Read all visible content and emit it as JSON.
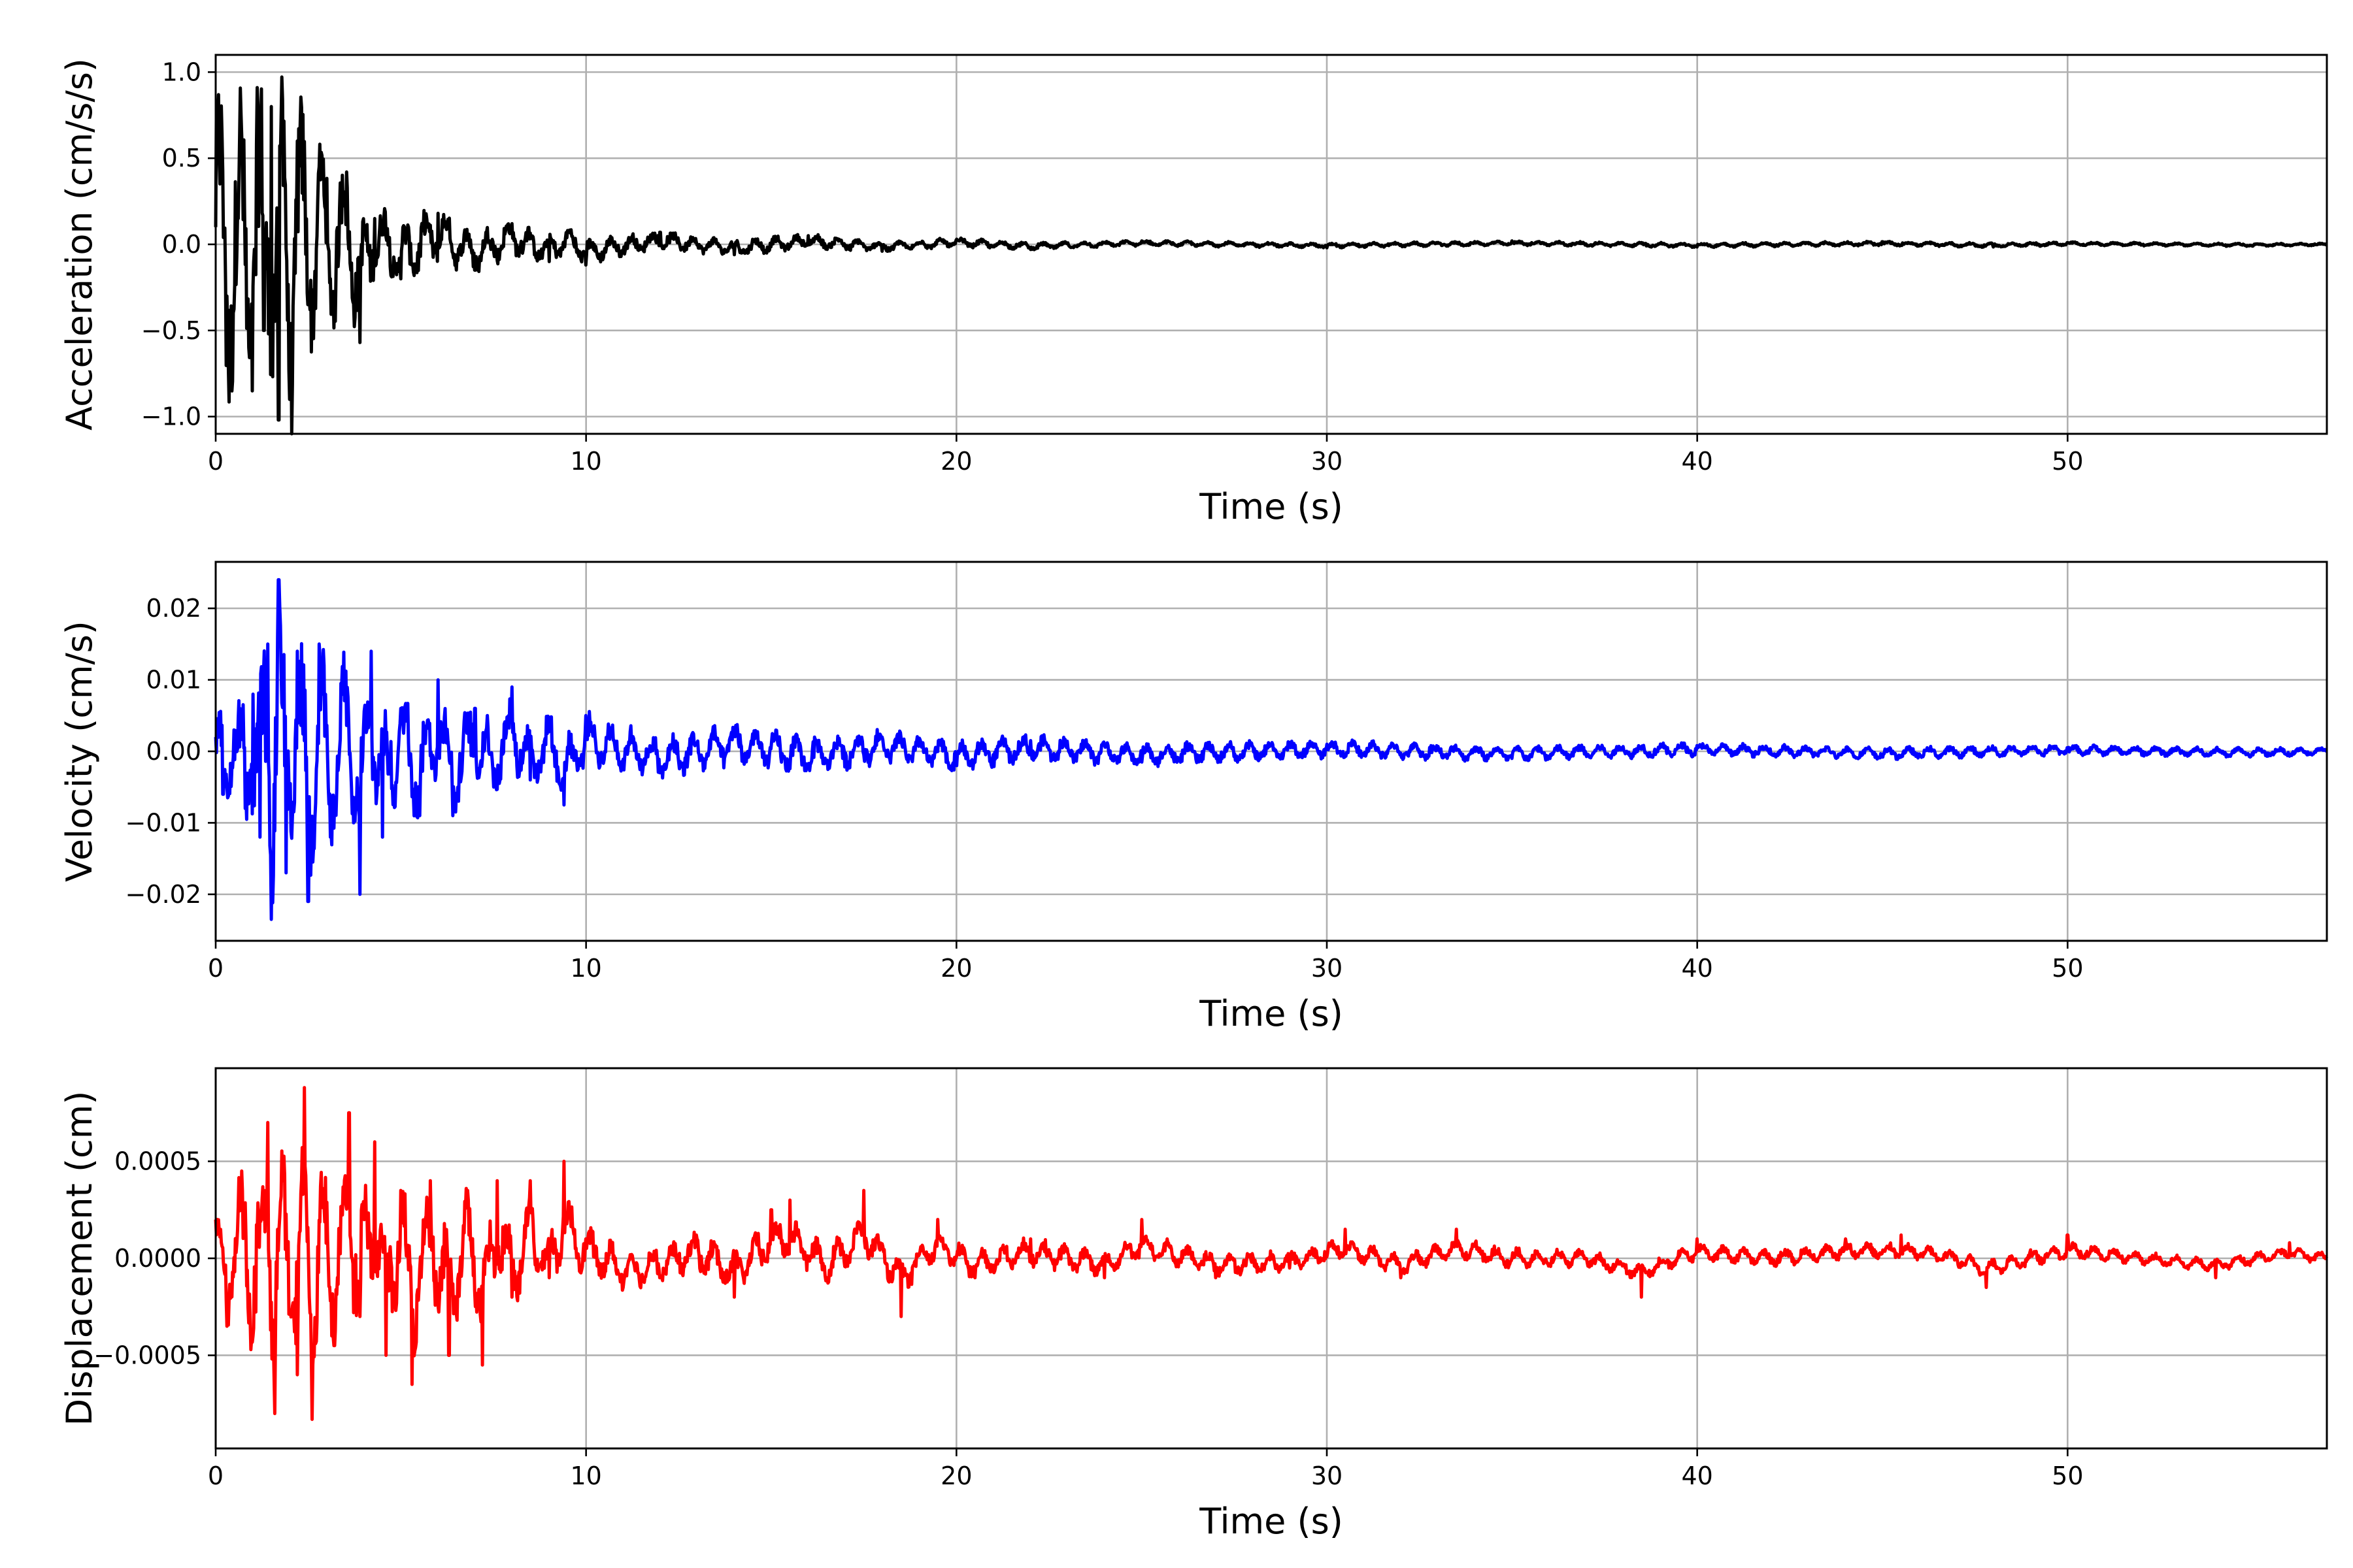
{
  "chart_data": [
    {
      "type": "line",
      "xlabel": "Time (s)",
      "ylabel": "Acceleration (cm/s/s)",
      "xlim": [
        0,
        57
      ],
      "ylim": [
        -1.1,
        1.1
      ],
      "xticks": [
        0,
        10,
        20,
        30,
        40,
        50
      ],
      "xtick_labels": [
        "0",
        "10",
        "20",
        "30",
        "40",
        "50"
      ],
      "yticks": [
        -1.0,
        -0.5,
        0.0,
        0.5,
        1.0
      ],
      "ytick_labels": [
        "−1.0",
        "−0.5",
        "0.0",
        "0.5",
        "1.0"
      ],
      "grid": true,
      "color": "#000000",
      "series": [
        {
          "x": [
            0,
            0.3,
            0.6,
            0.9,
            1.1,
            1.3,
            1.5,
            1.7,
            1.8,
            2.0,
            2.2,
            2.5,
            2.8,
            3.1,
            3.5,
            3.9,
            4.3,
            5.0,
            6.0,
            7.0,
            8.0,
            9.0,
            9.5,
            10,
            12,
            14,
            16,
            18,
            20,
            22,
            25,
            30,
            35,
            40,
            45,
            48,
            50,
            55,
            57
          ],
          "y": [
            0.1,
            -0.3,
            0.15,
            -0.6,
            0.58,
            -0.5,
            0.8,
            -1.02,
            0.84,
            -0.9,
            0.6,
            -0.35,
            0.45,
            -0.2,
            0.3,
            -0.57,
            0.15,
            -0.2,
            0.18,
            -0.15,
            0.12,
            -0.1,
            0.08,
            -0.12,
            0.07,
            -0.06,
            0.05,
            -0.04,
            0.03,
            -0.03,
            0.02,
            -0.02,
            0.02,
            -0.015,
            0.015,
            -0.015,
            0.01,
            -0.01,
            0.0
          ],
          "envelope": [
            0.9,
            0.9,
            0.9,
            0.9,
            0.9,
            0.9,
            0.9,
            0.9,
            0.9,
            0.9,
            0.75,
            0.6,
            0.5,
            0.45,
            0.45,
            0.3,
            0.22,
            0.18,
            0.16,
            0.12,
            0.1,
            0.08,
            0.08,
            0.07,
            0.05,
            0.045,
            0.04,
            0.03,
            0.025,
            0.02,
            0.015,
            0.013,
            0.012,
            0.012,
            0.012,
            0.012,
            0.01,
            0.008,
            0.006
          ]
        }
      ]
    },
    {
      "type": "line",
      "xlabel": "Time (s)",
      "ylabel": "Velocity (cm/s)",
      "xlim": [
        0,
        57
      ],
      "ylim": [
        -0.0265,
        0.0265
      ],
      "xticks": [
        0,
        10,
        20,
        30,
        40,
        50
      ],
      "xtick_labels": [
        "0",
        "10",
        "20",
        "30",
        "40",
        "50"
      ],
      "yticks": [
        -0.02,
        -0.01,
        0.0,
        0.01,
        0.02
      ],
      "ytick_labels": [
        "−0.02",
        "−0.01",
        "0.00",
        "0.01",
        "0.02"
      ],
      "grid": true,
      "color": "#0000ff",
      "series": [
        {
          "x": [
            0,
            0.2,
            0.5,
            0.8,
            1.0,
            1.2,
            1.4,
            1.5,
            1.7,
            1.9,
            2.2,
            2.5,
            2.8,
            3.1,
            3.5,
            3.9,
            4.2,
            4.5,
            5.0,
            5.5,
            6.0,
            6.4,
            7.0,
            7.5,
            8.0,
            8.5,
            9.0,
            9.4,
            10,
            12,
            14,
            16,
            18,
            20,
            22,
            25,
            30,
            35,
            40,
            45,
            50,
            55,
            57
          ],
          "y": [
            0.002,
            -0.006,
            0.003,
            -0.008,
            0.008,
            -0.012,
            0.015,
            -0.0235,
            0.024,
            -0.017,
            0.014,
            -0.021,
            0.015,
            -0.012,
            0.01,
            -0.02,
            0.014,
            -0.012,
            0.006,
            -0.009,
            0.01,
            -0.009,
            0.006,
            -0.005,
            0.009,
            -0.004,
            0.004,
            -0.0075,
            0.005,
            -0.003,
            0.003,
            -0.002,
            0.002,
            -0.002,
            0.0015,
            -0.0015,
            0.001,
            -0.001,
            0.0008,
            -0.0008,
            0.0005,
            -0.0005,
            0.0
          ],
          "envelope": [
            0.006,
            0.006,
            0.007,
            0.009,
            0.011,
            0.013,
            0.015,
            0.016,
            0.016,
            0.015,
            0.014,
            0.013,
            0.012,
            0.011,
            0.01,
            0.009,
            0.008,
            0.008,
            0.007,
            0.007,
            0.006,
            0.006,
            0.0055,
            0.005,
            0.005,
            0.0045,
            0.004,
            0.004,
            0.0035,
            0.003,
            0.0028,
            0.0025,
            0.0022,
            0.002,
            0.0018,
            0.0015,
            0.0012,
            0.001,
            0.0009,
            0.0008,
            0.0007,
            0.0006,
            0.0005
          ]
        }
      ]
    },
    {
      "type": "line",
      "xlabel": "Time (s)",
      "ylabel": "Displacement (cm)",
      "xlim": [
        0,
        57
      ],
      "ylim": [
        -0.00098,
        0.00098
      ],
      "xticks": [
        0,
        10,
        20,
        30,
        40,
        50
      ],
      "xtick_labels": [
        "0",
        "10",
        "20",
        "30",
        "40",
        "50"
      ],
      "yticks": [
        -0.0005,
        0.0,
        0.0005
      ],
      "ytick_labels": [
        "−0.0005",
        "0.0000",
        "0.0005"
      ],
      "grid": true,
      "color": "#ff0000",
      "series": [
        {
          "x": [
            0,
            0.3,
            0.7,
            1.0,
            1.4,
            1.6,
            1.8,
            2.2,
            2.4,
            2.6,
            2.9,
            3.2,
            3.6,
            3.9,
            4.3,
            4.6,
            5.0,
            5.3,
            5.8,
            6.3,
            6.8,
            7.2,
            7.6,
            8.0,
            8.5,
            9.0,
            9.4,
            10,
            11,
            12,
            13,
            14,
            15,
            15.5,
            16.5,
            17.5,
            18.5,
            19.5,
            20.5,
            22,
            24,
            25,
            27,
            29,
            30.5,
            32,
            33.5,
            35,
            37,
            38.5,
            40,
            42,
            44,
            45.5,
            47,
            47.8,
            50,
            52,
            54,
            56,
            57
          ],
          "y": [
            0.0002,
            -0.00035,
            0.00045,
            -0.0004,
            0.0007,
            -0.0008,
            0.0004,
            -0.0006,
            0.00088,
            -0.00083,
            0.00035,
            -0.00045,
            0.00075,
            -0.0003,
            0.0006,
            -0.0005,
            0.00035,
            -0.00065,
            0.0004,
            -0.0005,
            0.00035,
            -0.00055,
            0.0004,
            -0.0002,
            0.0004,
            -0.0001,
            0.0005,
            0.0001,
            -0.00015,
            -0.0001,
            0.0001,
            -0.0002,
            0.00025,
            0.0003,
            -0.0001,
            0.00035,
            -0.0003,
            0.0002,
            -0.0001,
            0.0001,
            -0.0001,
            0.0002,
            -0.0001,
            -5e-05,
            0.00015,
            -0.0001,
            0.00015,
            0.0,
            0.0,
            -0.0002,
            0.0001,
            0.0,
            0.0001,
            0.00012,
            0.0,
            -0.00015,
            0.00012,
            0.0,
            -0.0001,
            8e-05,
            0.0
          ],
          "envelope": [
            0.0002,
            0.00025,
            0.0003,
            0.00035,
            0.0004,
            0.0004,
            0.0004,
            0.0004,
            0.0004,
            0.0004,
            0.00035,
            0.00035,
            0.00035,
            0.00035,
            0.0003,
            0.0003,
            0.0003,
            0.0003,
            0.00028,
            0.00026,
            0.00024,
            0.00022,
            0.0002,
            0.0002,
            0.00018,
            0.00016,
            0.00015,
            0.00012,
            0.0001,
            0.0001,
            0.0001,
            0.0001,
            0.0001,
            0.0001,
            9e-05,
            9e-05,
            8e-05,
            8e-05,
            7e-05,
            7e-05,
            6e-05,
            6e-05,
            6e-05,
            5e-05,
            5e-05,
            5e-05,
            5e-05,
            5e-05,
            4e-05,
            4e-05,
            4e-05,
            4e-05,
            4e-05,
            4e-05,
            4e-05,
            4e-05,
            4e-05,
            3e-05,
            3e-05,
            3e-05,
            3e-05
          ]
        }
      ]
    }
  ]
}
